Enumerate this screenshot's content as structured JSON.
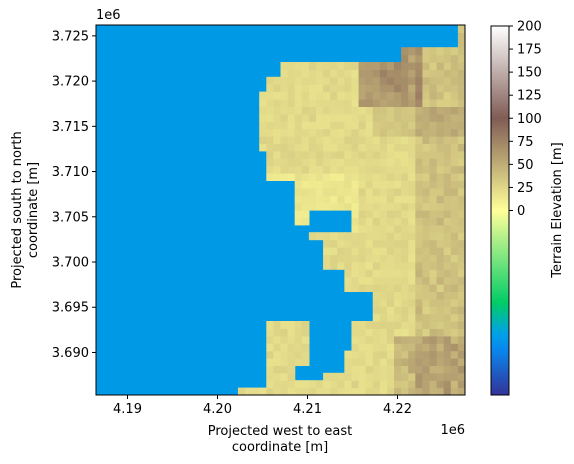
{
  "chart_data": {
    "type": "heatmap",
    "xlabel_lines": [
      "Projected west to east",
      "coordinate [m]"
    ],
    "ylabel_lines": [
      "Projected south to north",
      "coordinate [m]"
    ],
    "x_offset_label": "1e6",
    "y_offset_label": "1e6",
    "x_ticks": [
      {
        "value": 4.19,
        "label": "4.19"
      },
      {
        "value": 4.2,
        "label": "4.20"
      },
      {
        "value": 4.21,
        "label": "4.21"
      },
      {
        "value": 4.22,
        "label": "4.22"
      }
    ],
    "y_ticks": [
      {
        "value": 3.69,
        "label": "3.690"
      },
      {
        "value": 3.695,
        "label": "3.695"
      },
      {
        "value": 3.7,
        "label": "3.700"
      },
      {
        "value": 3.705,
        "label": "3.705"
      },
      {
        "value": 3.71,
        "label": "3.710"
      },
      {
        "value": 3.715,
        "label": "3.715"
      },
      {
        "value": 3.72,
        "label": "3.720"
      },
      {
        "value": 3.725,
        "label": "3.725"
      }
    ],
    "xlim": [
      4.1865,
      4.2275
    ],
    "ylim": [
      3.6853,
      3.7262
    ],
    "colorbar": {
      "label": "Terrain Elevation [m]",
      "ticks": [
        {
          "value": 0,
          "label": "0"
        },
        {
          "value": 25,
          "label": "25"
        },
        {
          "value": 50,
          "label": "50"
        },
        {
          "value": 75,
          "label": "75"
        },
        {
          "value": 100,
          "label": "100"
        },
        {
          "value": 125,
          "label": "125"
        },
        {
          "value": 150,
          "label": "150"
        },
        {
          "value": 175,
          "label": "175"
        },
        {
          "value": 200,
          "label": "200"
        }
      ],
      "range": [
        -200,
        200
      ],
      "colormap": "terrain"
    },
    "water_color": "#0099e6",
    "land_summary": "Land elevations mostly 15-40 m, peaking near 60-70 m in the northeast; sea (elevation 0 or below) covers the west."
  }
}
